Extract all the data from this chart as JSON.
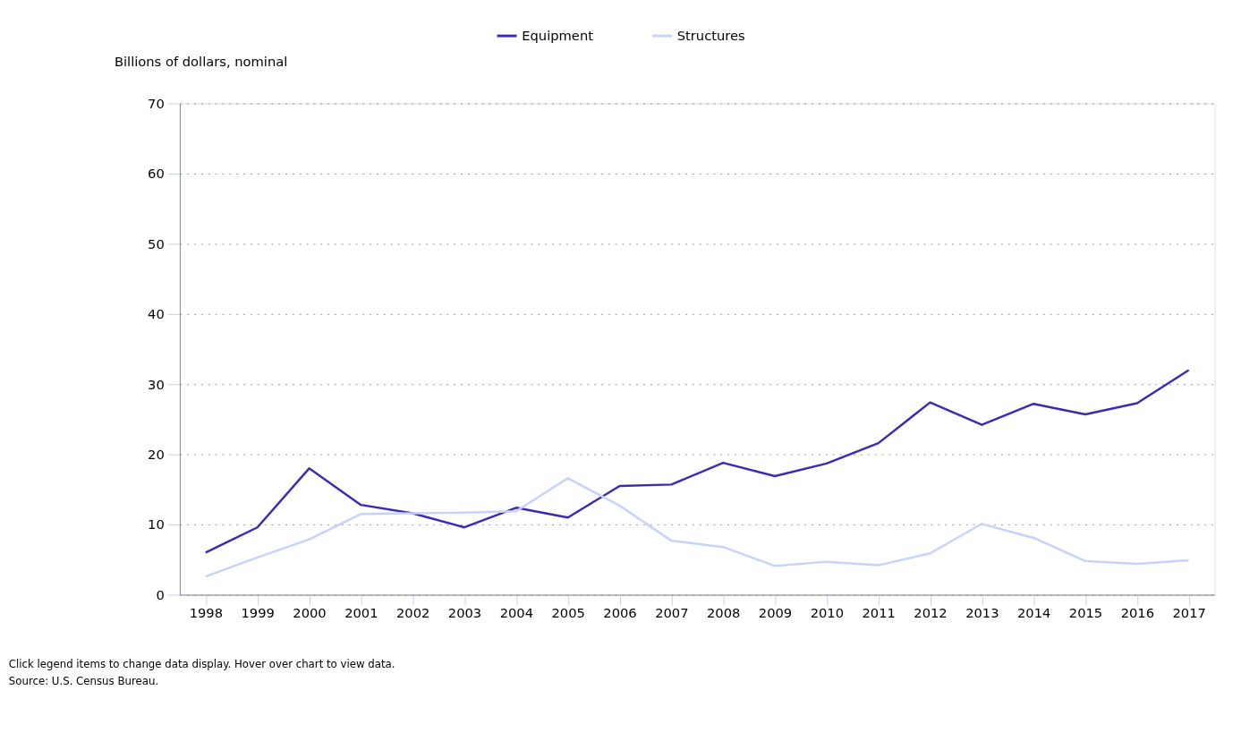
{
  "chart_data": {
    "type": "line",
    "ylabel": "Billions of dollars, nominal",
    "categories": [
      "1998",
      "1999",
      "2000",
      "2001",
      "2002",
      "2003",
      "2004",
      "2005",
      "2006",
      "2007",
      "2008",
      "2009",
      "2010",
      "2011",
      "2012",
      "2013",
      "2014",
      "2015",
      "2016",
      "2017"
    ],
    "series": [
      {
        "name": "Equipment",
        "color": "#3a2ab5",
        "values": [
          6.0,
          9.6,
          18.0,
          12.8,
          11.6,
          9.6,
          12.4,
          11.0,
          15.5,
          15.7,
          18.8,
          16.9,
          18.7,
          21.6,
          27.4,
          24.2,
          27.2,
          25.7,
          27.3,
          32.0
        ]
      },
      {
        "name": "Structures",
        "color": "#c5d2fb",
        "values": [
          2.6,
          5.3,
          7.9,
          11.5,
          11.6,
          11.7,
          11.9,
          16.6,
          12.7,
          7.7,
          6.8,
          4.1,
          4.7,
          4.2,
          5.9,
          10.1,
          8.1,
          4.8,
          4.4,
          4.9
        ]
      }
    ],
    "ylim": [
      0,
      70
    ],
    "yticks": [
      0,
      10,
      20,
      30,
      40,
      50,
      60,
      70
    ],
    "grid": "y",
    "legend": "top",
    "marker": "none",
    "line_style": "solid",
    "annotations": [
      "Click legend items to change data display. Hover over chart to view data.",
      "Source: U.S. Census Bureau."
    ]
  }
}
